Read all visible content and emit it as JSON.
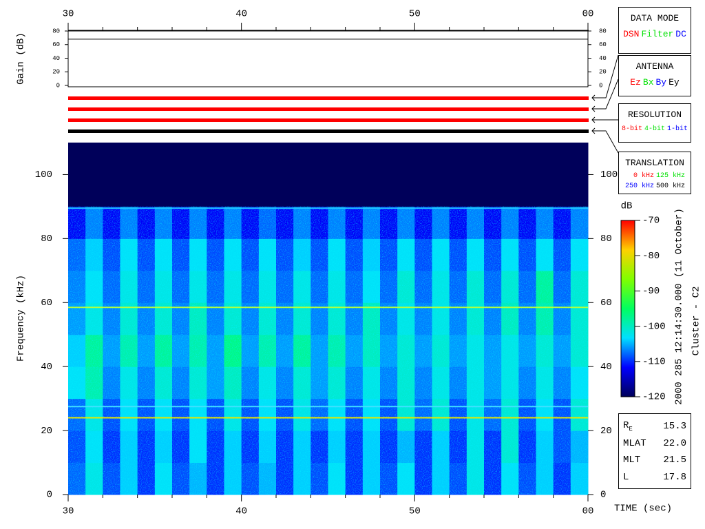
{
  "chart_data": [
    {
      "type": "line",
      "y_label": "Gain (dB)",
      "x": [
        30,
        60
      ],
      "values": [
        68,
        68
      ],
      "color": "#000000",
      "xlim": [
        30,
        60
      ],
      "ylim": [
        0,
        80
      ],
      "xticks": [
        30,
        40,
        50,
        {
          "value": 60,
          "label": "00"
        }
      ],
      "minor_xticks": [
        32,
        34,
        36,
        38,
        42,
        44,
        46,
        48,
        52,
        54,
        56,
        58
      ],
      "yticks": [
        0,
        20,
        40,
        60,
        80
      ]
    },
    {
      "type": "heatmap",
      "y_label": "Frequency (kHz)",
      "x_label": "TIME (sec)",
      "xlim": [
        30,
        60
      ],
      "ylim": [
        0,
        110
      ],
      "xticks": [
        30,
        40,
        50,
        {
          "value": 60,
          "label": "00"
        }
      ],
      "minor_xticks": [
        32,
        34,
        36,
        38,
        42,
        44,
        46,
        48,
        52,
        54,
        56,
        58
      ],
      "yticks": [
        0,
        20,
        40,
        60,
        80,
        100
      ],
      "x_edges": [
        30,
        31,
        32,
        33,
        34,
        35,
        36,
        37,
        38,
        39,
        40,
        41,
        42,
        43,
        44,
        45,
        46,
        47,
        48,
        49,
        50,
        51,
        52,
        53,
        54,
        55,
        56,
        57,
        58,
        59,
        60
      ],
      "y_edges": [
        0,
        10,
        20,
        30,
        40,
        50,
        60,
        70,
        80,
        90,
        100,
        110
      ],
      "z": [
        [
          -108,
          -102,
          -109,
          -104,
          -110,
          -103,
          -109,
          -105,
          -110,
          -104,
          -109,
          -105,
          -110,
          -104,
          -109,
          -103,
          -110,
          -104,
          -109,
          -103,
          -110,
          -104,
          -109,
          -102,
          -110,
          -103,
          -109,
          -104,
          -110,
          -104
        ],
        [
          -109,
          -103,
          -110,
          -104,
          -110,
          -104,
          -110,
          -103,
          -110,
          -104,
          -110,
          -104,
          -110,
          -104,
          -110,
          -104,
          -110,
          -104,
          -110,
          -105,
          -110,
          -104,
          -110,
          -102,
          -110,
          -101,
          -110,
          -104,
          -109,
          -105
        ],
        [
          -108,
          -102,
          -109,
          -103,
          -109,
          -103,
          -109,
          -103,
          -109,
          -102,
          -109,
          -103,
          -109,
          -102,
          -108,
          -103,
          -109,
          -103,
          -109,
          -101,
          -108,
          -101,
          -109,
          -102,
          -108,
          -101,
          -109,
          -103,
          -109,
          -101
        ],
        [
          -103,
          -99,
          -107,
          -102,
          -107,
          -101,
          -107,
          -101,
          -106,
          -100,
          -107,
          -102,
          -107,
          -101,
          -106,
          -101,
          -107,
          -102,
          -107,
          -101,
          -107,
          -102,
          -107,
          -102,
          -106,
          -102,
          -107,
          -102,
          -107,
          -103
        ],
        [
          -104,
          -98,
          -106,
          -99,
          -106,
          -98,
          -106,
          -99,
          -106,
          -97,
          -106,
          -99,
          -106,
          -98,
          -106,
          -99,
          -106,
          -100,
          -106,
          -101,
          -106,
          -101,
          -106,
          -102,
          -106,
          -102,
          -106,
          -101,
          -106,
          -101
        ],
        [
          -106,
          -102,
          -107,
          -101,
          -107,
          -101,
          -107,
          -100,
          -107,
          -101,
          -107,
          -101,
          -107,
          -101,
          -107,
          -101,
          -107,
          -100,
          -107,
          -102,
          -107,
          -102,
          -107,
          -101,
          -107,
          -100,
          -107,
          -99,
          -107,
          -101
        ],
        [
          -107,
          -103,
          -108,
          -102,
          -108,
          -102,
          -108,
          -102,
          -108,
          -102,
          -108,
          -102,
          -108,
          -102,
          -108,
          -102,
          -108,
          -103,
          -108,
          -101,
          -108,
          -102,
          -108,
          -101,
          -108,
          -101,
          -108,
          -98,
          -108,
          -101
        ],
        [
          -108,
          -104,
          -109,
          -103,
          -109,
          -103,
          -109,
          -103,
          -109,
          -103,
          -109,
          -103,
          -109,
          -104,
          -109,
          -103,
          -109,
          -104,
          -109,
          -103,
          -109,
          -103,
          -109,
          -103,
          -109,
          -103,
          -109,
          -103,
          -109,
          -103
        ],
        [
          -112,
          -107,
          -112,
          -107,
          -112,
          -107,
          -112,
          -107,
          -112,
          -107,
          -112,
          -108,
          -112,
          -107,
          -112,
          -107,
          -112,
          -107,
          -112,
          -107,
          -112,
          -107,
          -112,
          -107,
          -112,
          -107,
          -112,
          -107,
          -112,
          -107
        ],
        [
          -120,
          -120,
          -120,
          -120,
          -120,
          -120,
          -120,
          -120,
          -120,
          -120,
          -120,
          -120,
          -120,
          -120,
          -120,
          -120,
          -120,
          -120,
          -120,
          -120,
          -120,
          -120,
          -120,
          -120,
          -120,
          -120,
          -120,
          -120,
          -120,
          -120
        ],
        [
          -120,
          -120,
          -120,
          -120,
          -120,
          -120,
          -120,
          -120,
          -120,
          -120,
          -120,
          -120,
          -120,
          -120,
          -120,
          -120,
          -120,
          -120,
          -120,
          -120,
          -120,
          -120,
          -120,
          -120,
          -120,
          -120,
          -120,
          -120,
          -120,
          -120
        ]
      ],
      "lines": [
        {
          "value": 89.5,
          "color": "#20c8ff"
        },
        {
          "value": 58.5,
          "color": "#b0ff40"
        },
        {
          "value": 27.5,
          "color": "#40e0ff"
        },
        {
          "value": 24,
          "color": "#e8e800"
        }
      ],
      "clim": [
        -120,
        -70
      ],
      "colorbar_label": "dB",
      "cticks": [
        -120,
        -110,
        -100,
        -90,
        -80,
        -70
      ],
      "colormap": [
        "#00005a",
        "#0000ff",
        "#00e0ff",
        "#00ff60",
        "#80ff00",
        "#ffd000",
        "#ff0000"
      ]
    }
  ],
  "labels": {
    "timestamp": "2000 285 12:14:30.000 (11 October)",
    "spacecraft": "Cluster - C2"
  },
  "modes": [
    {
      "title": "DATA MODE",
      "options": [
        {
          "text": "DSN",
          "color": "#ff0000"
        },
        {
          "text": "Filter",
          "color": "#00e000"
        },
        {
          "text": "DC",
          "color": "#0000ff"
        }
      ]
    },
    {
      "title": "ANTENNA",
      "options": [
        {
          "text": "Ez",
          "color": "#ff0000"
        },
        {
          "text": "Bx",
          "color": "#00e000"
        },
        {
          "text": "By",
          "color": "#0000ff"
        },
        {
          "text": "Ey",
          "color": "#000000"
        }
      ]
    },
    {
      "title": "RESOLUTION",
      "options": [
        {
          "text": "8-bit",
          "color": "#ff0000"
        },
        {
          "text": "4-bit",
          "color": "#00e000"
        },
        {
          "text": "1-bit",
          "color": "#0000ff"
        }
      ]
    },
    {
      "title": "TRANSLATION",
      "options": [
        {
          "text": "0 kHz",
          "color": "#ff0000"
        },
        {
          "text": "125 kHz",
          "color": "#00e000"
        },
        {
          "text": "250 kHz",
          "color": "#0000ff"
        },
        {
          "text": "500 kHz",
          "color": "#000000"
        }
      ]
    }
  ],
  "info": [
    {
      "label": "R",
      "subscript": "E",
      "value": "15.3"
    },
    {
      "label": "MLAT",
      "value": "22.0"
    },
    {
      "label": "MLT",
      "value": "21.5"
    },
    {
      "label": "L",
      "value": "17.8"
    }
  ]
}
